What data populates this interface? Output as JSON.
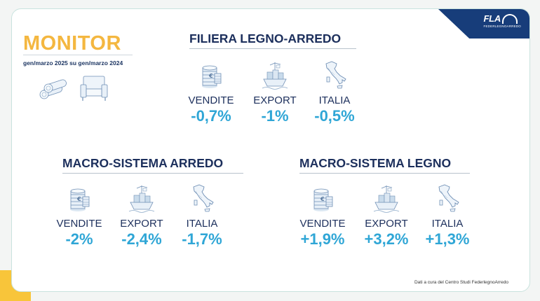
{
  "logo": {
    "text": "FLA",
    "subtitle": "FEDERLEGNOARREDO"
  },
  "monitor": {
    "title": "MONITOR",
    "subtitle": "gen/marzo 2025 su gen/marzo 2024"
  },
  "sections": {
    "filiera": {
      "title": "FILIERA LEGNO-ARREDO",
      "vendite": {
        "label": "VENDITE",
        "value": "-0,7%"
      },
      "export": {
        "label": "EXPORT",
        "value": "-1%"
      },
      "italia": {
        "label": "ITALIA",
        "value": "-0,5%"
      }
    },
    "arredo": {
      "title": "MACRO-SISTEMA ARREDO",
      "vendite": {
        "label": "VENDITE",
        "value": "-2%"
      },
      "export": {
        "label": "EXPORT",
        "value": "-2,4%"
      },
      "italia": {
        "label": "ITALIA",
        "value": "-1,7%"
      }
    },
    "legno": {
      "title": "MACRO-SISTEMA LEGNO",
      "vendite": {
        "label": "VENDITE",
        "value": "+1,9%"
      },
      "export": {
        "label": "EXPORT",
        "value": "+3,2%"
      },
      "italia": {
        "label": "ITALIA",
        "value": "+1,3%"
      }
    }
  },
  "footnote": "Dati a cura del Centro Studi FederlegnoArredo",
  "colors": {
    "accent_yellow": "#f4b740",
    "value_blue": "#2fa6d6",
    "navy": "#1c2f5c",
    "brand_blue": "#173d7a"
  }
}
